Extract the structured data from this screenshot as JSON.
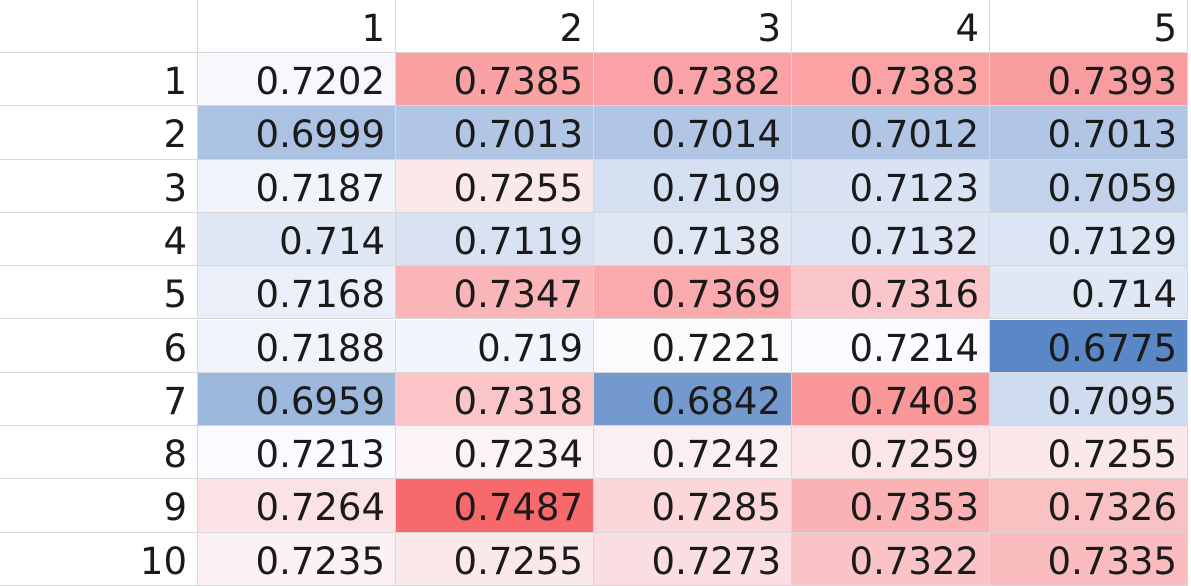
{
  "column_headers": [
    "1",
    "2",
    "3",
    "4",
    "5"
  ],
  "row_headers": [
    "1",
    "2",
    "3",
    "4",
    "5",
    "6",
    "7",
    "8",
    "9",
    "10"
  ],
  "values": [
    [
      "0.7202",
      "0.7385",
      "0.7382",
      "0.7383",
      "0.7393"
    ],
    [
      "0.6999",
      "0.7013",
      "0.7014",
      "0.7012",
      "0.7013"
    ],
    [
      "0.7187",
      "0.7255",
      "0.7109",
      "0.7123",
      "0.7059"
    ],
    [
      "0.714",
      "0.7119",
      "0.7138",
      "0.7132",
      "0.7129"
    ],
    [
      "0.7168",
      "0.7347",
      "0.7369",
      "0.7316",
      "0.714"
    ],
    [
      "0.7188",
      "0.719",
      "0.7221",
      "0.7214",
      "0.6775"
    ],
    [
      "0.6959",
      "0.7318",
      "0.6842",
      "0.7403",
      "0.7095"
    ],
    [
      "0.7213",
      "0.7234",
      "0.7242",
      "0.7259",
      "0.7255"
    ],
    [
      "0.7264",
      "0.7487",
      "0.7285",
      "0.7353",
      "0.7326"
    ],
    [
      "0.7235",
      "0.7255",
      "0.7273",
      "0.7322",
      "0.7335"
    ]
  ],
  "colors": {
    "scale_low": "#5a87c5",
    "scale_mid": "#fcfcff",
    "scale_high": "#f8696b",
    "grid_line": "#d8d8d8",
    "text": "#1a1a1a"
  }
}
